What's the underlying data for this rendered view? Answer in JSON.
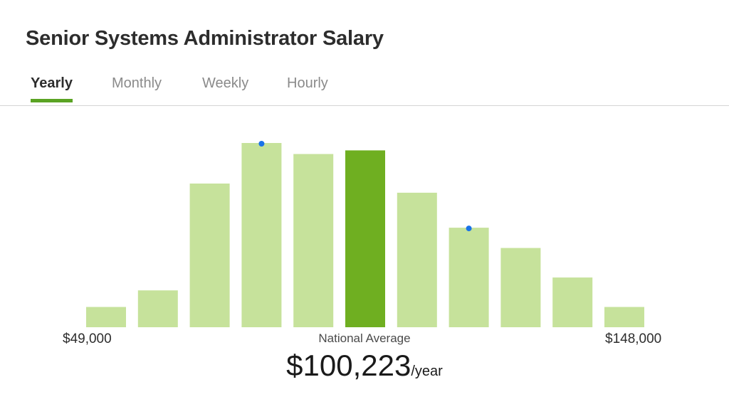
{
  "header": {
    "title": "Senior Systems Administrator Salary"
  },
  "tabs": [
    {
      "label": "Yearly",
      "active": true
    },
    {
      "label": "Monthly",
      "active": false
    },
    {
      "label": "Weekly",
      "active": false
    },
    {
      "label": "Hourly",
      "active": false
    }
  ],
  "summary": {
    "min_label": "$49,000",
    "max_label": "$148,000",
    "caption": "National Average",
    "amount": "$100,223",
    "unit": "/year"
  },
  "chart_data": {
    "type": "bar",
    "title": "",
    "xlabel": "",
    "ylabel": "",
    "x_range": [
      49000,
      148000
    ],
    "values": [
      11,
      20,
      78,
      100,
      94,
      96,
      73,
      54,
      43,
      27,
      11
    ],
    "highlight_index": 5,
    "marker_indices": [
      3,
      7
    ],
    "colors": {
      "bar": "#c6e29b",
      "highlight": "#6faf21",
      "marker": "#1a73e8"
    }
  }
}
